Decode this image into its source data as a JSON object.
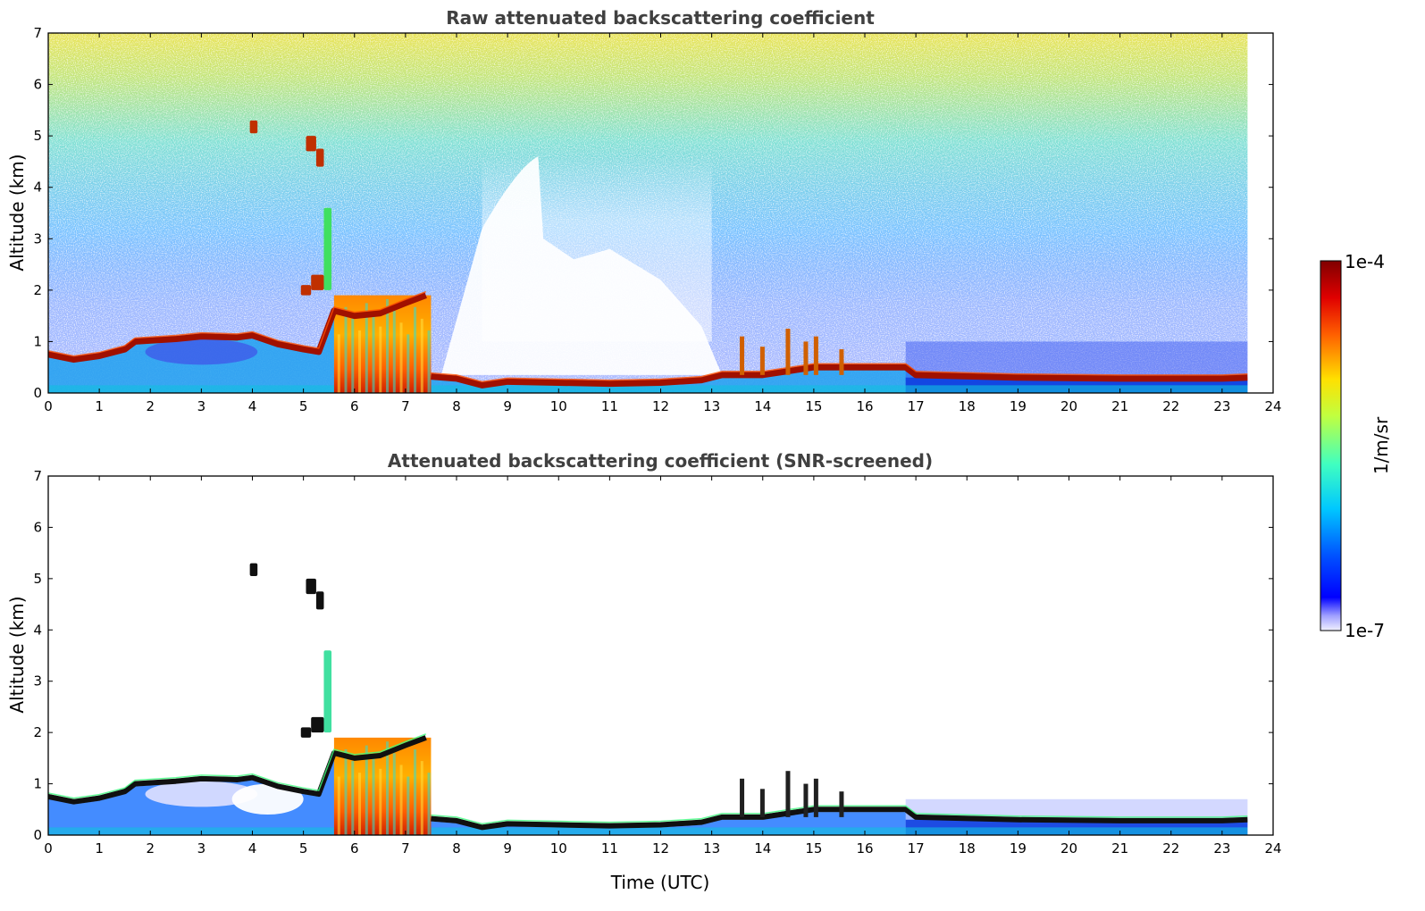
{
  "chart_data": [
    {
      "type": "heatmap",
      "title": "Raw attenuated backscattering coefficient",
      "xlabel": "",
      "ylabel": "Altitude (km)",
      "xlim": [
        0,
        24
      ],
      "ylim": [
        0,
        7
      ],
      "x_ticks": [
        "0",
        "1",
        "2",
        "3",
        "4",
        "5",
        "6",
        "7",
        "8",
        "9",
        "10",
        "11",
        "12",
        "13",
        "14",
        "15",
        "16",
        "17",
        "18",
        "19",
        "20",
        "21",
        "22",
        "23",
        "24"
      ],
      "y_ticks": [
        "0",
        "1",
        "2",
        "3",
        "4",
        "5",
        "6",
        "7"
      ],
      "data_end_time": 23.5,
      "boundary_layer_top": [
        {
          "t": 0,
          "h": 0.75
        },
        {
          "t": 0.5,
          "h": 0.65
        },
        {
          "t": 1.0,
          "h": 0.72
        },
        {
          "t": 1.5,
          "h": 0.85
        },
        {
          "t": 1.7,
          "h": 1.0
        },
        {
          "t": 2.5,
          "h": 1.05
        },
        {
          "t": 3.0,
          "h": 1.1
        },
        {
          "t": 3.7,
          "h": 1.08
        },
        {
          "t": 4.0,
          "h": 1.12
        },
        {
          "t": 4.5,
          "h": 0.95
        },
        {
          "t": 5.0,
          "h": 0.85
        },
        {
          "t": 5.3,
          "h": 0.8
        },
        {
          "t": 5.6,
          "h": 1.6
        },
        {
          "t": 6.0,
          "h": 1.5
        },
        {
          "t": 6.5,
          "h": 1.55
        },
        {
          "t": 7.0,
          "h": 1.75
        },
        {
          "t": 7.4,
          "h": 1.9
        },
        {
          "t": 7.5,
          "h": 0.32
        },
        {
          "t": 8.0,
          "h": 0.28
        },
        {
          "t": 8.5,
          "h": 0.15
        },
        {
          "t": 9.0,
          "h": 0.22
        },
        {
          "t": 10.0,
          "h": 0.2
        },
        {
          "t": 11.0,
          "h": 0.18
        },
        {
          "t": 12.0,
          "h": 0.2
        },
        {
          "t": 12.8,
          "h": 0.25
        },
        {
          "t": 13.2,
          "h": 0.35
        },
        {
          "t": 14.0,
          "h": 0.35
        },
        {
          "t": 15.0,
          "h": 0.5
        },
        {
          "t": 16.0,
          "h": 0.5
        },
        {
          "t": 16.8,
          "h": 0.5
        },
        {
          "t": 17.0,
          "h": 0.35
        },
        {
          "t": 19.0,
          "h": 0.3
        },
        {
          "t": 21.0,
          "h": 0.28
        },
        {
          "t": 23.0,
          "h": 0.28
        },
        {
          "t": 23.5,
          "h": 0.3
        }
      ],
      "cloud_features": [
        {
          "t0": 3.95,
          "t1": 4.1,
          "h0": 5.05,
          "h1": 5.3,
          "level": "high"
        },
        {
          "t0": 5.05,
          "t1": 5.25,
          "h0": 4.7,
          "h1": 5.0,
          "level": "high"
        },
        {
          "t0": 5.25,
          "t1": 5.4,
          "h0": 4.4,
          "h1": 4.75,
          "level": "high"
        },
        {
          "t0": 5.4,
          "t1": 5.55,
          "h0": 2.0,
          "h1": 3.6,
          "level": "mid"
        },
        {
          "t0": 4.95,
          "t1": 5.15,
          "h0": 1.9,
          "h1": 2.1,
          "level": "high"
        },
        {
          "t0": 5.15,
          "t1": 5.4,
          "h0": 2.0,
          "h1": 2.3,
          "level": "high"
        }
      ],
      "precipitation_shafts": [
        {
          "t0": 5.6,
          "t1": 7.5,
          "top": 1.9
        }
      ],
      "colors": {
        "low": "#0000ff",
        "mid": "#00ffff",
        "high": "#ffff00",
        "max": "#800000"
      }
    },
    {
      "type": "heatmap",
      "title": "Attenuated backscattering coefficient (SNR-screened)",
      "xlabel": "Time (UTC)",
      "ylabel": "Altitude (km)",
      "xlim": [
        0,
        24
      ],
      "ylim": [
        0,
        7
      ],
      "x_ticks": [
        "0",
        "1",
        "2",
        "3",
        "4",
        "5",
        "6",
        "7",
        "8",
        "9",
        "10",
        "11",
        "12",
        "13",
        "14",
        "15",
        "16",
        "17",
        "18",
        "19",
        "20",
        "21",
        "22",
        "23",
        "24"
      ],
      "y_ticks": [
        "0",
        "1",
        "2",
        "3",
        "4",
        "5",
        "6",
        "7"
      ],
      "data_end_time": 23.5
    }
  ],
  "colorbar": {
    "label": "1/m/sr",
    "max_label": "1e-4",
    "min_label": "1e-7",
    "scale": "log",
    "range": [
      1e-07,
      0.0001
    ]
  }
}
